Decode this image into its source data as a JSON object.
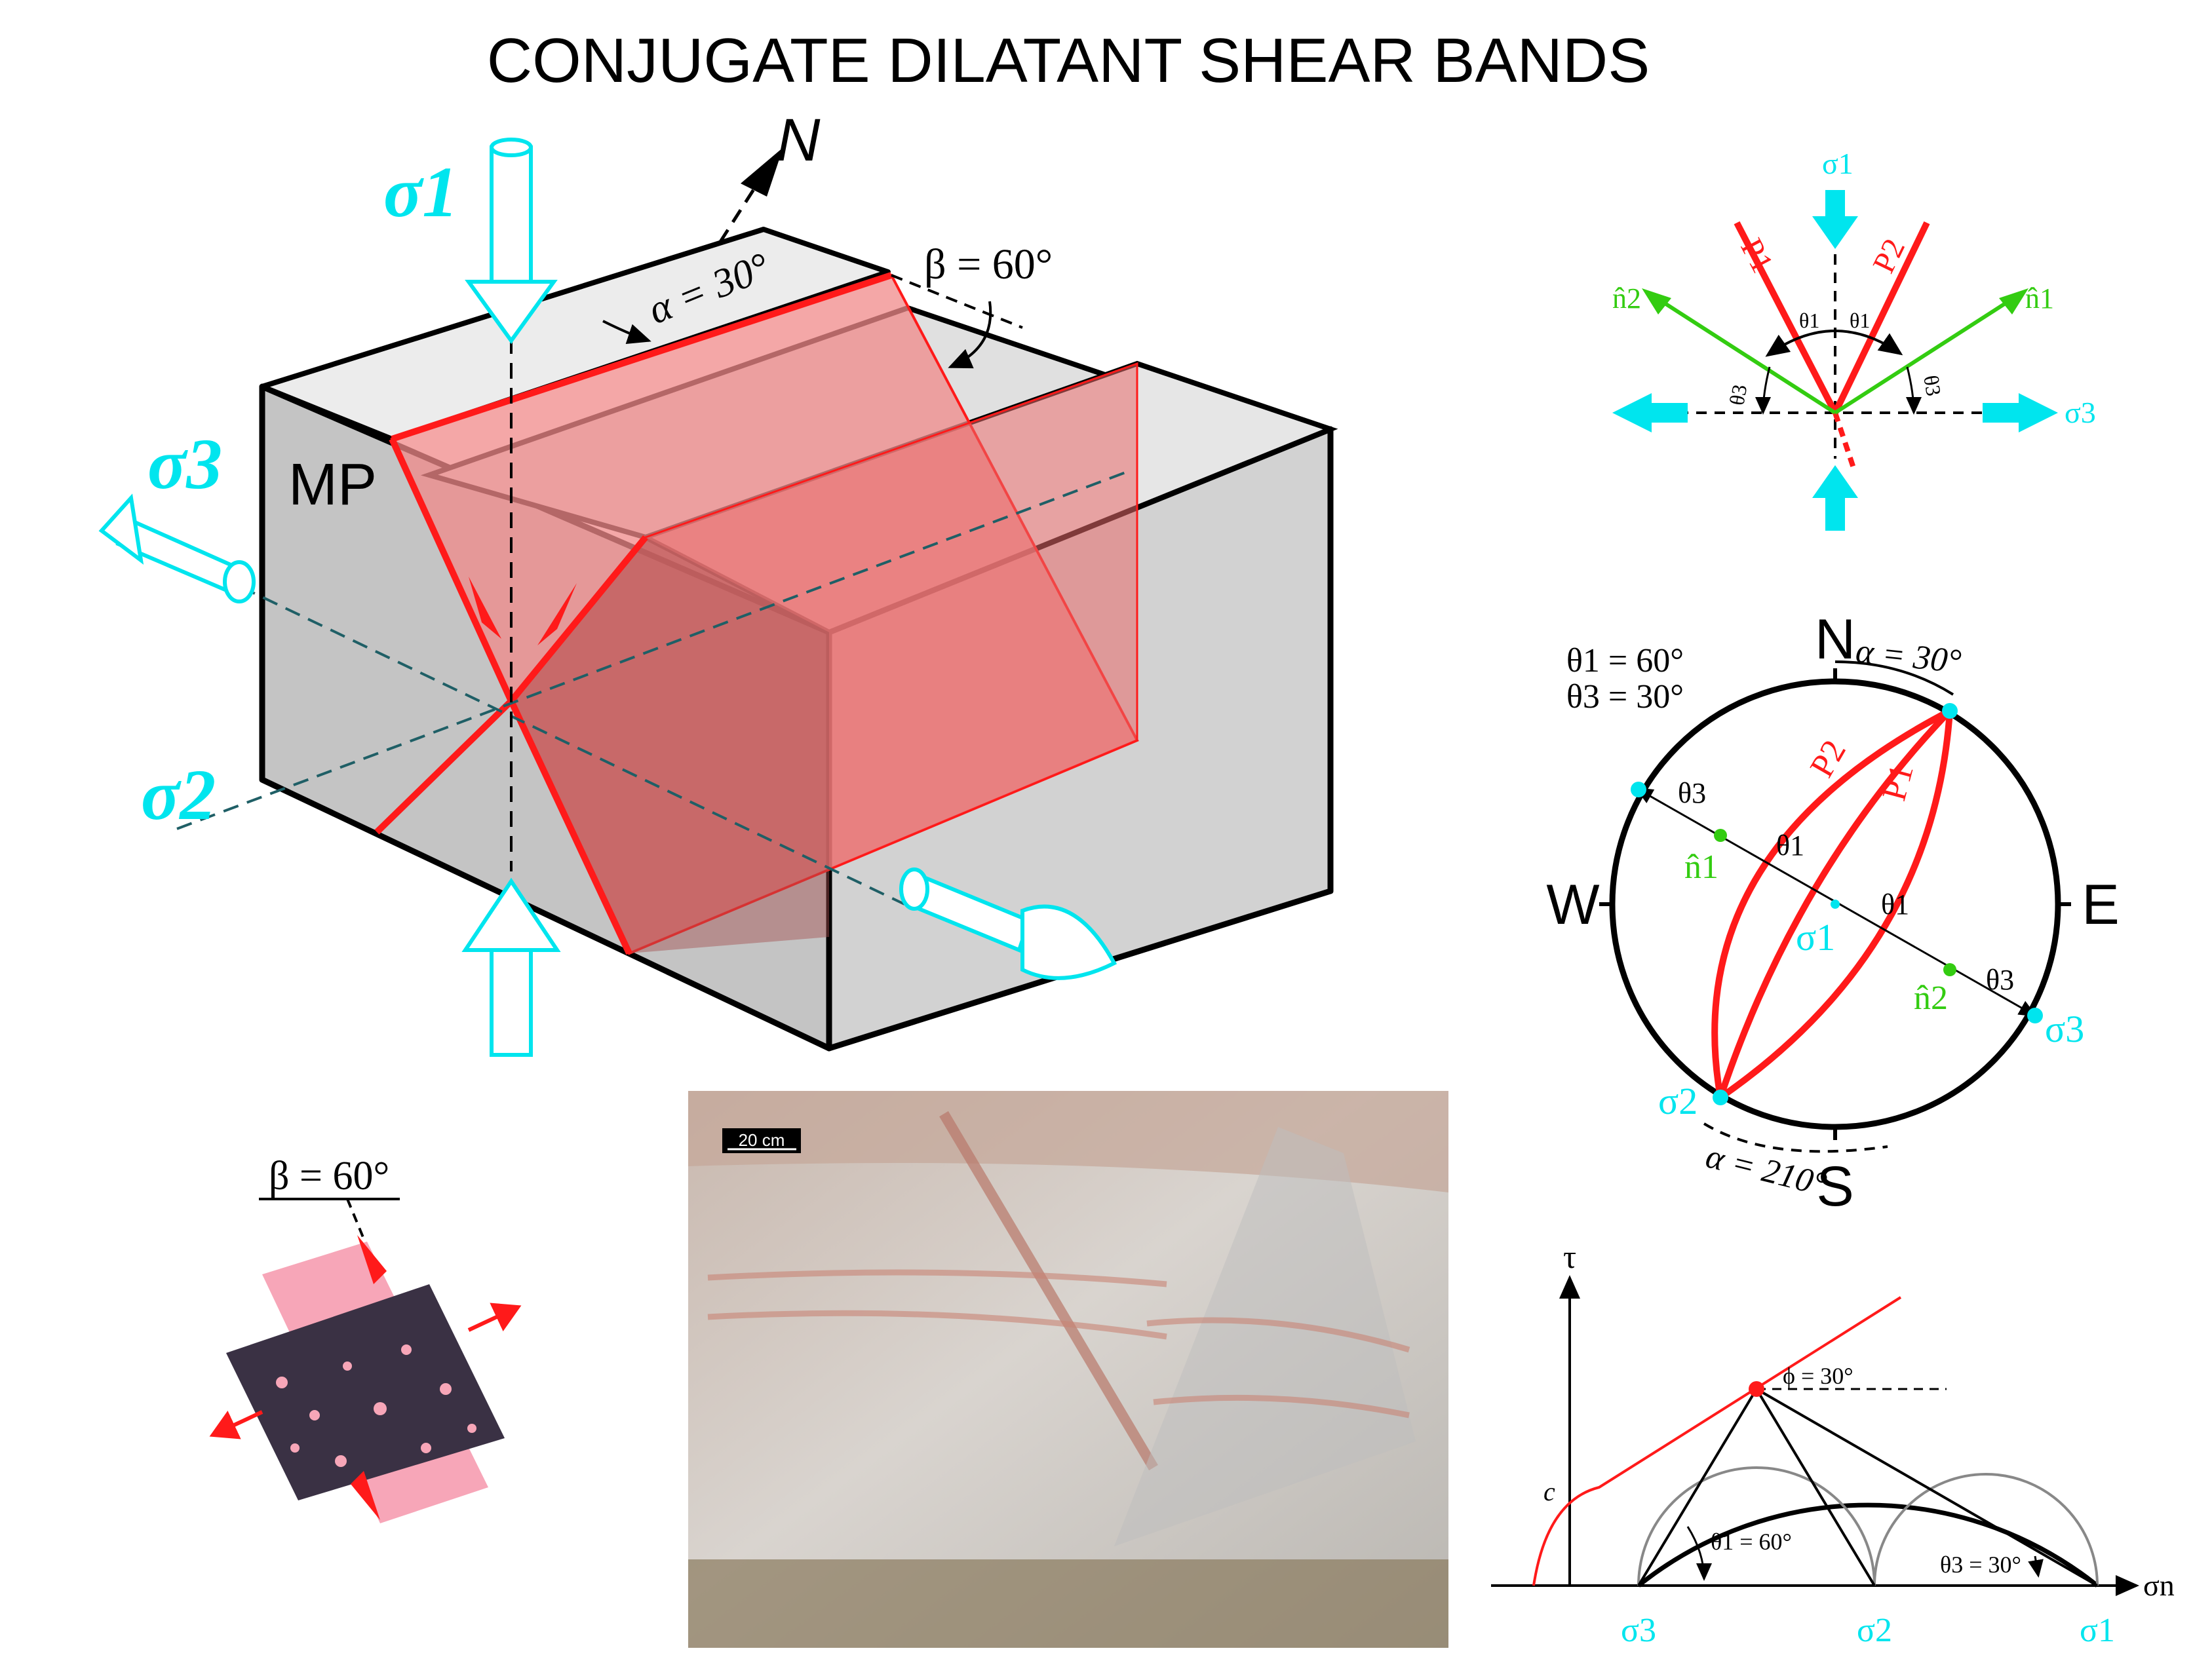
{
  "title": "CONJUGATE DILATANT SHEAR BANDS",
  "block": {
    "north_label": "N",
    "sigma1": "σ1",
    "sigma2": "σ2",
    "sigma3": "σ3",
    "mp_label": "MP",
    "alpha_label": "α = 30°",
    "beta_label": "β = 60°"
  },
  "section_diagram": {
    "sigma1": "σ1",
    "sigma3": "σ3",
    "p1": "P1",
    "p2": "P2",
    "n1": "n̂1",
    "n2": "n̂2",
    "theta1_left": "θ1",
    "theta1_right": "θ1",
    "theta3_left": "θ3",
    "theta3_right": "θ3"
  },
  "stereonet": {
    "north": "N",
    "south": "S",
    "west": "W",
    "east": "E",
    "alpha_top": "α = 30°",
    "alpha_bottom": "α = 210°",
    "theta1_value": "θ1 = 60°",
    "theta3_value": "θ3 = 30°",
    "p1": "P1",
    "p2": "P2",
    "n1": "n̂1",
    "n2": "n̂2",
    "sigma1": "σ1",
    "sigma2": "σ2",
    "sigma3": "σ3",
    "theta1_a": "θ1",
    "theta1_b": "θ1",
    "theta3_a": "θ3",
    "theta3_b": "θ3"
  },
  "grain_sketch": {
    "beta_label": "β = 60°"
  },
  "photo": {
    "scale_label": "20 cm"
  },
  "mohr": {
    "tau": "τ",
    "sigma_n": "σn",
    "c_label": "c",
    "phi_label": "ϕ = 30°",
    "theta1_label": "θ1 = 60°",
    "theta3_label": "θ3 = 30°",
    "sigma1": "σ1",
    "sigma2": "σ2",
    "sigma3": "σ3"
  },
  "colors": {
    "cyan": "#00e5ee",
    "red": "#ff1a1a",
    "green": "#33cc11",
    "band_fill": "#f08a8a",
    "block_side": "#c4c4c4",
    "block_top": "#e6e6e6",
    "grain": "#3a3144",
    "matrix": "#f7a6b8"
  }
}
